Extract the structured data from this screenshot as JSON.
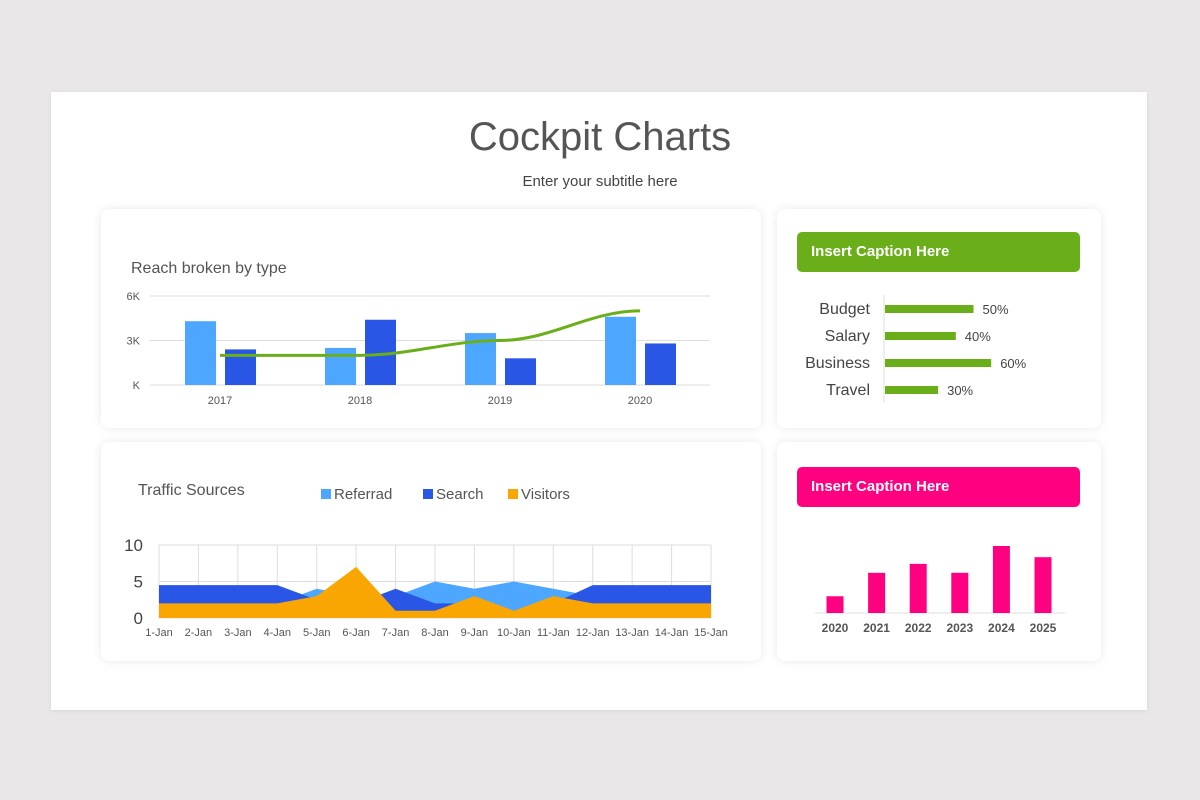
{
  "header": {
    "title": "Cockpit Charts",
    "subtitle": "Enter your subtitle here"
  },
  "colors": {
    "light_blue": "#4da6ff",
    "dark_blue": "#2a56e6",
    "green": "#6aaf1a",
    "orange": "#f9a602",
    "pink": "#ff0080"
  },
  "chart_data": [
    {
      "type": "bar",
      "title": "Reach broken by type",
      "categories": [
        "2017",
        "2018",
        "2019",
        "2020"
      ],
      "ylim": [
        0,
        6000
      ],
      "yticks": [
        "K",
        "3K",
        "6K"
      ],
      "grid": true,
      "series": [
        {
          "type": "bar",
          "color": "#4da6ff",
          "values": [
            4300,
            2500,
            3500,
            4600
          ]
        },
        {
          "type": "bar",
          "color": "#2a56e6",
          "values": [
            2400,
            4400,
            1800,
            2800
          ]
        },
        {
          "type": "line",
          "color": "#6aaf1a",
          "values": [
            2000,
            2000,
            3000,
            5000
          ]
        }
      ]
    },
    {
      "type": "bar",
      "orientation": "horizontal",
      "caption": "Insert Caption Here",
      "categories": [
        "Budget",
        "Salary",
        "Business",
        "Travel"
      ],
      "values": [
        50,
        40,
        60,
        30
      ],
      "labels": [
        "50%",
        "40%",
        "60%",
        "30%"
      ]
    },
    {
      "type": "area",
      "title": "Traffic Sources",
      "ylim": [
        0,
        10
      ],
      "yticks": [
        "0",
        "5",
        "10"
      ],
      "grid": true,
      "legend": "top",
      "categories": [
        "1-Jan",
        "2-Jan",
        "3-Jan",
        "4-Jan",
        "5-Jan",
        "6-Jan",
        "7-Jan",
        "8-Jan",
        "9-Jan",
        "10-Jan",
        "11-Jan",
        "12-Jan",
        "13-Jan",
        "14-Jan",
        "15-Jan"
      ],
      "series": [
        {
          "name": "Referrad",
          "color": "#4da6ff",
          "values": [
            2,
            2,
            2,
            2,
            4,
            3,
            3,
            5,
            4,
            5,
            4,
            3,
            2,
            2,
            2
          ]
        },
        {
          "name": "Search",
          "color": "#2a56e6",
          "values": [
            4.5,
            4.5,
            4.5,
            4.5,
            2.5,
            2,
            4,
            2,
            2,
            1,
            2,
            4.5,
            4.5,
            4.5,
            4.5
          ]
        },
        {
          "name": "Visitors",
          "color": "#f9a602",
          "values": [
            2,
            2,
            2,
            2,
            3,
            7,
            1,
            1,
            3,
            1,
            3,
            2,
            2,
            2,
            2
          ]
        }
      ]
    },
    {
      "type": "bar",
      "caption": "Insert Caption Here",
      "categories": [
        "2020",
        "2021",
        "2022",
        "2023",
        "2024",
        "2025"
      ],
      "values": [
        1.5,
        3.6,
        4.4,
        3.6,
        6,
        5
      ]
    }
  ]
}
